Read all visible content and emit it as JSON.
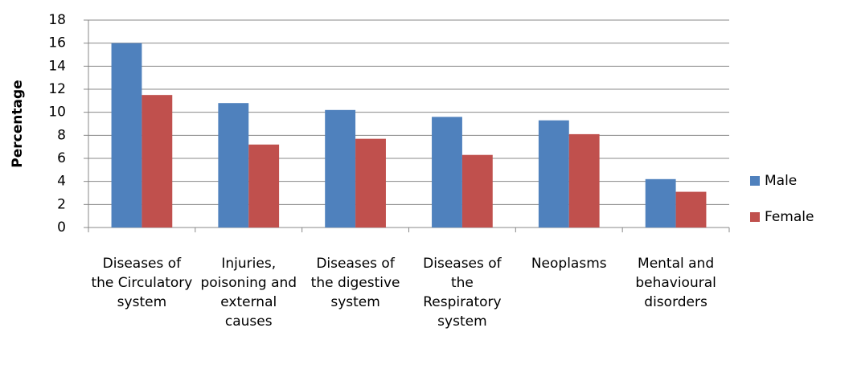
{
  "chart_data": {
    "type": "bar",
    "y_label": "Percentage",
    "categories": [
      "Diseases of the Circulatory system",
      "Injuries, poisoning and external causes",
      "Diseases of the digestive system",
      "Diseases of the Respiratory system",
      "Neoplasms",
      "Mental and behavioural disorders"
    ],
    "series": [
      {
        "name": "Male",
        "color": "#4f81bd",
        "values": [
          16,
          10.8,
          10.2,
          9.6,
          9.3,
          4.2
        ]
      },
      {
        "name": "Female",
        "color": "#c0504d",
        "values": [
          11.5,
          7.2,
          7.7,
          6.3,
          8.1,
          3.1
        ]
      }
    ],
    "ylim": [
      0,
      18
    ],
    "yticks": [
      0,
      2,
      4,
      6,
      8,
      10,
      12,
      14,
      16,
      18
    ],
    "grid": true,
    "legend": "right"
  }
}
